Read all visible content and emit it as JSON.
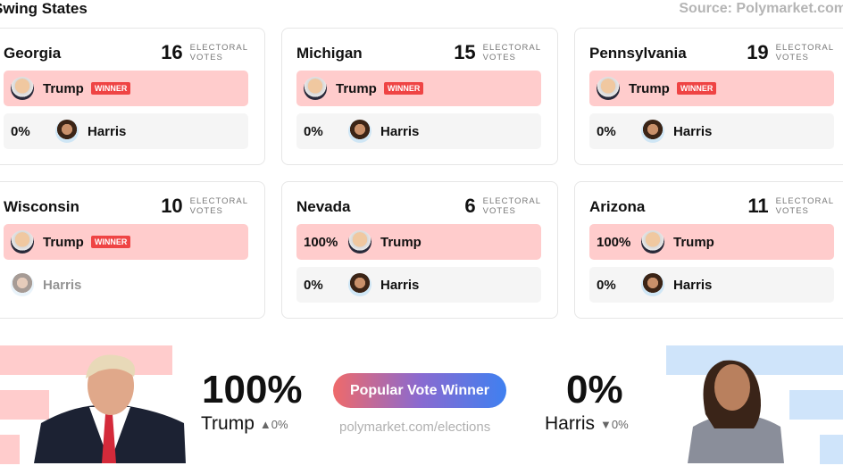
{
  "header": {
    "title": "Swing States",
    "source": "Source: Polymarket.com"
  },
  "labels": {
    "electoral": "ELECTORAL",
    "votes": "VOTES",
    "winner": "WINNER"
  },
  "states": [
    {
      "name": "Georgia",
      "ev": "16",
      "rows": [
        {
          "pct": "",
          "name": "Trump",
          "winner": true
        },
        {
          "pct": "0%",
          "name": "Harris"
        }
      ]
    },
    {
      "name": "Michigan",
      "ev": "15",
      "rows": [
        {
          "pct": "",
          "name": "Trump",
          "winner": true
        },
        {
          "pct": "0%",
          "name": "Harris"
        }
      ]
    },
    {
      "name": "Pennsylvania",
      "ev": "19",
      "rows": [
        {
          "pct": "",
          "name": "Trump",
          "winner": true
        },
        {
          "pct": "0%",
          "name": "Harris"
        }
      ]
    },
    {
      "name": "Wisconsin",
      "ev": "10",
      "rows": [
        {
          "pct": "",
          "name": "Trump",
          "winner": true
        },
        {
          "pct": "",
          "name": "Harris"
        }
      ]
    },
    {
      "name": "Nevada",
      "ev": "6",
      "rows": [
        {
          "pct": "100%",
          "name": "Trump"
        },
        {
          "pct": "0%",
          "name": "Harris"
        }
      ]
    },
    {
      "name": "Arizona",
      "ev": "11",
      "rows": [
        {
          "pct": "100%",
          "name": "Trump"
        },
        {
          "pct": "0%",
          "name": "Harris"
        }
      ]
    }
  ],
  "popular": {
    "trump_pct": "100%",
    "trump_name": "Trump",
    "trump_change": "0%",
    "harris_pct": "0%",
    "harris_name": "Harris",
    "harris_change": "0%",
    "badge": "Popular Vote Winner",
    "url": "polymarket.com/elections"
  },
  "colors": {
    "trump": "#ffcccc",
    "harris": "#cfe4fa",
    "winner": "#ef4444"
  }
}
